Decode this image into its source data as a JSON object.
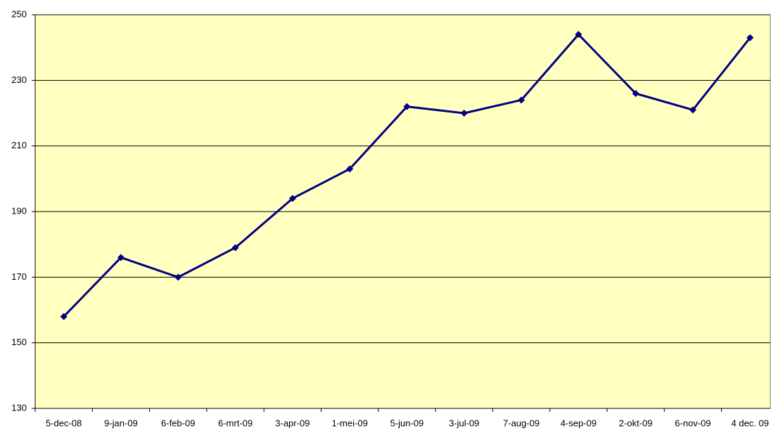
{
  "chart_data": {
    "type": "line",
    "categories": [
      "5-dec-08",
      "9-jan-09",
      "6-feb-09",
      "6-mrt-09",
      "3-apr-09",
      "1-mei-09",
      "5-jun-09",
      "3-jul-09",
      "7-aug-09",
      "4-sep-09",
      "2-okt-09",
      "6-nov-09",
      "4 dec. 09"
    ],
    "values": [
      158,
      176,
      170,
      179,
      194,
      203,
      222,
      220,
      224,
      244,
      226,
      221,
      243
    ],
    "color": "#000080",
    "ylim": [
      130,
      250
    ],
    "yticks": [
      130,
      150,
      170,
      190,
      210,
      230,
      250
    ],
    "grid": true
  }
}
